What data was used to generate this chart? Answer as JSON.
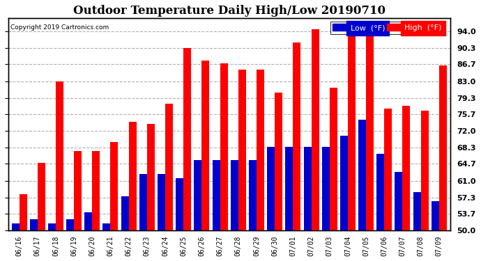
{
  "title": "Outdoor Temperature Daily High/Low 20190710",
  "copyright": "Copyright 2019 Cartronics.com",
  "dates": [
    "06/16",
    "06/17",
    "06/18",
    "06/19",
    "06/20",
    "06/21",
    "06/22",
    "06/23",
    "06/24",
    "06/25",
    "06/26",
    "06/27",
    "06/28",
    "06/29",
    "06/30",
    "07/01",
    "07/02",
    "07/03",
    "07/04",
    "07/05",
    "07/06",
    "07/07",
    "07/08",
    "07/09"
  ],
  "highs": [
    58.0,
    65.0,
    83.0,
    67.5,
    67.5,
    69.5,
    74.0,
    73.5,
    78.0,
    90.3,
    87.5,
    87.0,
    85.5,
    85.5,
    80.5,
    91.5,
    94.5,
    81.5,
    93.5,
    93.5,
    77.0,
    77.5,
    76.5,
    86.5
  ],
  "lows": [
    51.5,
    52.5,
    51.5,
    52.5,
    54.0,
    51.5,
    57.5,
    62.5,
    62.5,
    61.5,
    65.5,
    65.5,
    65.5,
    65.5,
    68.5,
    68.5,
    68.5,
    68.5,
    71.0,
    74.5,
    67.0,
    63.0,
    58.5,
    56.5
  ],
  "high_color": "#FF0000",
  "low_color": "#0000CC",
  "bg_color": "#FFFFFF",
  "plot_bg_color": "#FFFFFF",
  "grid_color": "#B0B0B0",
  "title_fontsize": 12,
  "yticks": [
    50.0,
    53.7,
    57.3,
    61.0,
    64.7,
    68.3,
    72.0,
    75.7,
    79.3,
    83.0,
    86.7,
    90.3,
    94.0
  ],
  "ylim": [
    50.0,
    97.0
  ],
  "legend_low_label": "Low  (°F)",
  "legend_high_label": "High  (°F)"
}
